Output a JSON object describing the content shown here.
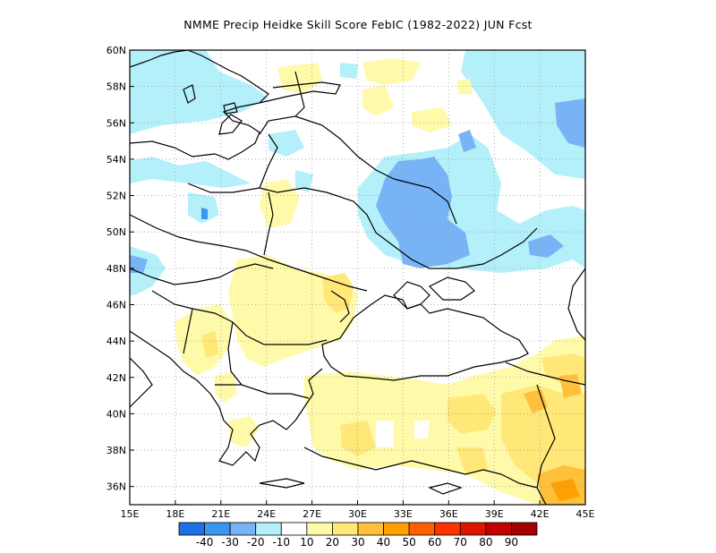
{
  "title": "NMME Precip Heidke Skill Score FebIC (1982-2022) JUN Fcst",
  "map": {
    "lon_range": [
      15,
      45
    ],
    "lat_range": [
      35,
      60
    ],
    "lon_ticks": [
      "15E",
      "18E",
      "21E",
      "24E",
      "27E",
      "30E",
      "33E",
      "36E",
      "39E",
      "42E",
      "45E"
    ],
    "lat_ticks": [
      "36N",
      "38N",
      "40N",
      "42N",
      "44N",
      "46N",
      "48N",
      "50N",
      "52N",
      "54N",
      "56N",
      "58N",
      "60N"
    ],
    "gridlines": "dotted"
  },
  "colorbar": {
    "colors": [
      "#1e6ee6",
      "#3c96f0",
      "#78b4f5",
      "#b4f0fa",
      "#ffffff",
      "#fffaaa",
      "#ffe878",
      "#ffc03c",
      "#ffa000",
      "#ff6000",
      "#ff3200",
      "#e11400",
      "#c00000",
      "#a50000"
    ],
    "labels": [
      "-40",
      "-30",
      "-20",
      "-10",
      "10",
      "20",
      "30",
      "40",
      "50",
      "60",
      "70",
      "80",
      "90"
    ]
  }
}
